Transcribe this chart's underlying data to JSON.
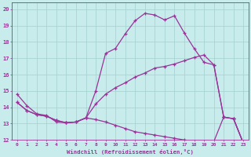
{
  "xlabel": "Windchill (Refroidissement éolien,°C)",
  "bg_color": "#c8ecec",
  "grid_color": "#aad4d4",
  "line_color": "#993399",
  "xlim": [
    -0.5,
    23.5
  ],
  "ylim": [
    12,
    20.4
  ],
  "yticks": [
    12,
    13,
    14,
    15,
    16,
    17,
    18,
    19,
    20
  ],
  "xticks": [
    0,
    1,
    2,
    3,
    4,
    5,
    6,
    7,
    8,
    9,
    10,
    11,
    12,
    13,
    14,
    15,
    16,
    17,
    18,
    19,
    20,
    21,
    22,
    23
  ],
  "series1_x": [
    0,
    1,
    2,
    3,
    4,
    5,
    6,
    7,
    8,
    9,
    10,
    11,
    12,
    13,
    14,
    15,
    16,
    17,
    18,
    19,
    20,
    21,
    22,
    23
  ],
  "series1_y": [
    14.8,
    14.1,
    13.6,
    13.5,
    13.1,
    13.05,
    13.1,
    13.35,
    15.0,
    17.3,
    17.6,
    18.5,
    19.3,
    19.75,
    19.65,
    19.35,
    19.6,
    18.55,
    17.6,
    16.75,
    16.6,
    13.4,
    13.3,
    11.8
  ],
  "series2_x": [
    0,
    1,
    2,
    3,
    4,
    5,
    6,
    7,
    8,
    9,
    10,
    11,
    12,
    13,
    14,
    15,
    16,
    17,
    18,
    19,
    20,
    21,
    22,
    23
  ],
  "series2_y": [
    14.3,
    13.8,
    13.55,
    13.45,
    13.2,
    13.05,
    13.1,
    13.35,
    14.2,
    14.8,
    15.2,
    15.5,
    15.85,
    16.1,
    16.4,
    16.5,
    16.65,
    16.85,
    17.05,
    17.2,
    16.6,
    13.4,
    13.3,
    11.8
  ],
  "series3_x": [
    0,
    1,
    2,
    3,
    4,
    5,
    6,
    7,
    8,
    9,
    10,
    11,
    12,
    13,
    14,
    15,
    16,
    17,
    18,
    19,
    20,
    21,
    22,
    23
  ],
  "series3_y": [
    14.3,
    13.8,
    13.55,
    13.45,
    13.2,
    13.05,
    13.1,
    13.35,
    13.25,
    13.1,
    12.9,
    12.7,
    12.5,
    12.4,
    12.3,
    12.2,
    12.1,
    12.0,
    11.9,
    11.85,
    11.9,
    13.4,
    13.3,
    11.8
  ]
}
